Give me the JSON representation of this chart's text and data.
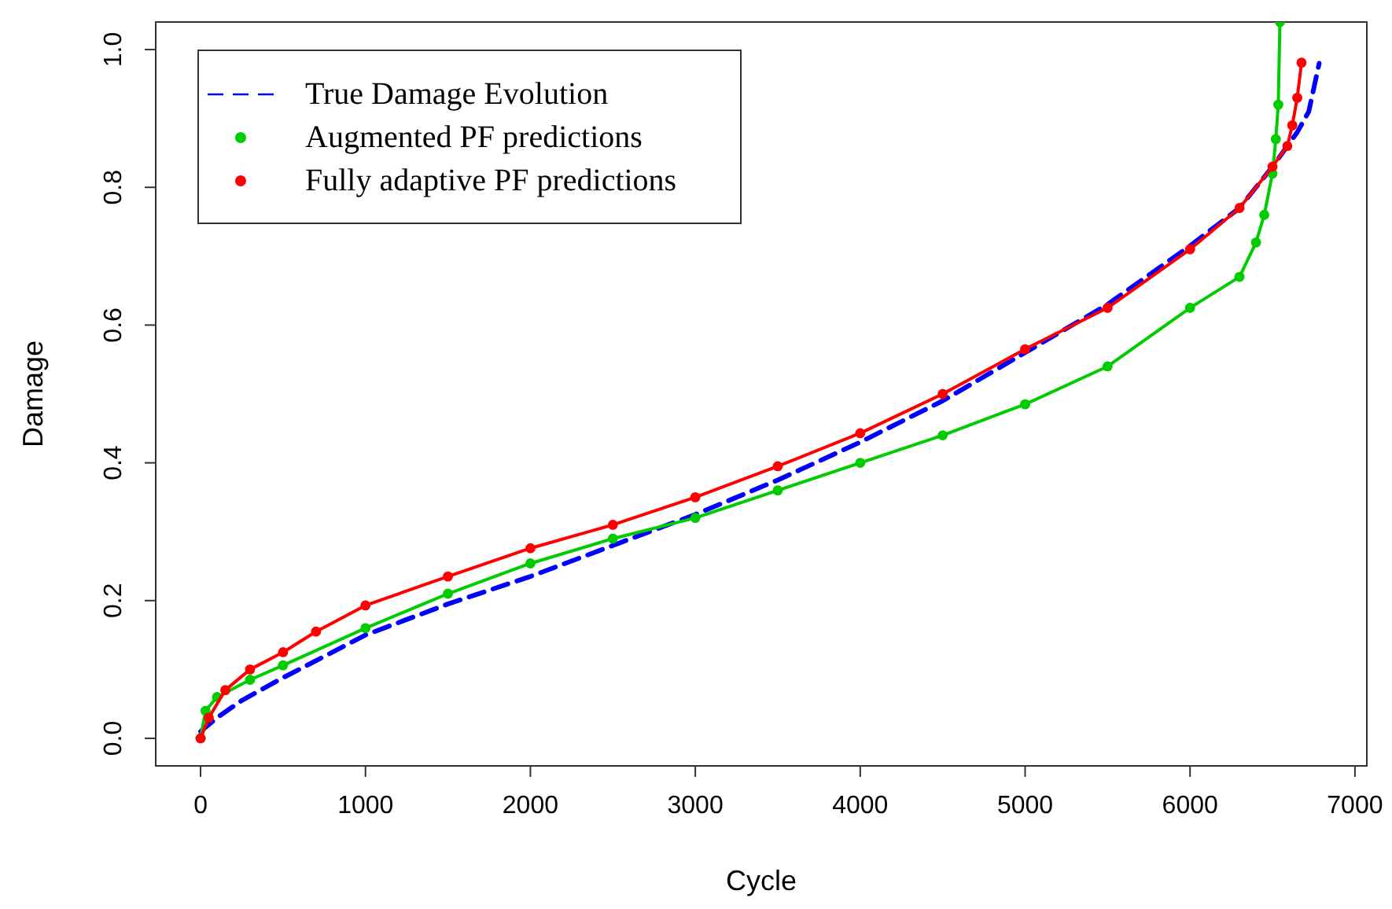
{
  "chart_data": {
    "type": "line",
    "xlabel": "Cycle",
    "ylabel": "Damage",
    "xlim": [
      -272,
      7072
    ],
    "ylim": [
      -0.04,
      1.04
    ],
    "xticks": [
      0,
      1000,
      2000,
      3000,
      4000,
      5000,
      6000,
      7000
    ],
    "yticks": [
      {
        "value": 0,
        "label": "0.0"
      },
      0.2,
      0.4,
      0.6,
      0.8,
      {
        "value": 1,
        "label": "1.0"
      }
    ],
    "grid": false,
    "legend": "top left",
    "series": [
      {
        "name": "True Damage Evolution",
        "color": "#0000ff",
        "line_style": "dashed",
        "marker": "none",
        "x": [
          0,
          100,
          250,
          500,
          1000,
          1500,
          2000,
          2500,
          3000,
          3500,
          4000,
          4500,
          5000,
          5500,
          6000,
          6300,
          6500,
          6650,
          6720,
          6783
        ],
        "values": [
          0.01,
          0.03,
          0.055,
          0.088,
          0.15,
          0.195,
          0.235,
          0.28,
          0.325,
          0.375,
          0.43,
          0.49,
          0.56,
          0.63,
          0.715,
          0.77,
          0.83,
          0.88,
          0.91,
          0.98
        ]
      },
      {
        "name": "Augmented PF predictions",
        "color": "#00cc00",
        "line_style": "solid",
        "marker": "circle",
        "x": [
          0,
          30,
          100,
          300,
          500,
          1000,
          1500,
          2000,
          2500,
          3000,
          3500,
          4000,
          4500,
          5000,
          5500,
          6000,
          6300,
          6400,
          6450,
          6500,
          6520,
          6535,
          6545
        ],
        "values": [
          0,
          0.04,
          0.06,
          0.085,
          0.106,
          0.16,
          0.21,
          0.254,
          0.29,
          0.32,
          0.36,
          0.4,
          0.44,
          0.485,
          0.54,
          0.625,
          0.67,
          0.72,
          0.76,
          0.82,
          0.87,
          0.92,
          1.04
        ]
      },
      {
        "name": "Fully adaptive PF predictions",
        "color": "#ff0000",
        "line_style": "solid",
        "marker": "circle",
        "x": [
          0,
          50,
          150,
          300,
          500,
          700,
          1000,
          1500,
          2000,
          2500,
          3000,
          3500,
          4000,
          4500,
          5000,
          5500,
          6000,
          6300,
          6500,
          6590,
          6620,
          6650,
          6676
        ],
        "values": [
          0,
          0.03,
          0.07,
          0.1,
          0.125,
          0.155,
          0.193,
          0.235,
          0.276,
          0.31,
          0.35,
          0.395,
          0.443,
          0.5,
          0.565,
          0.625,
          0.71,
          0.77,
          0.83,
          0.86,
          0.89,
          0.93,
          0.981
        ]
      }
    ]
  }
}
